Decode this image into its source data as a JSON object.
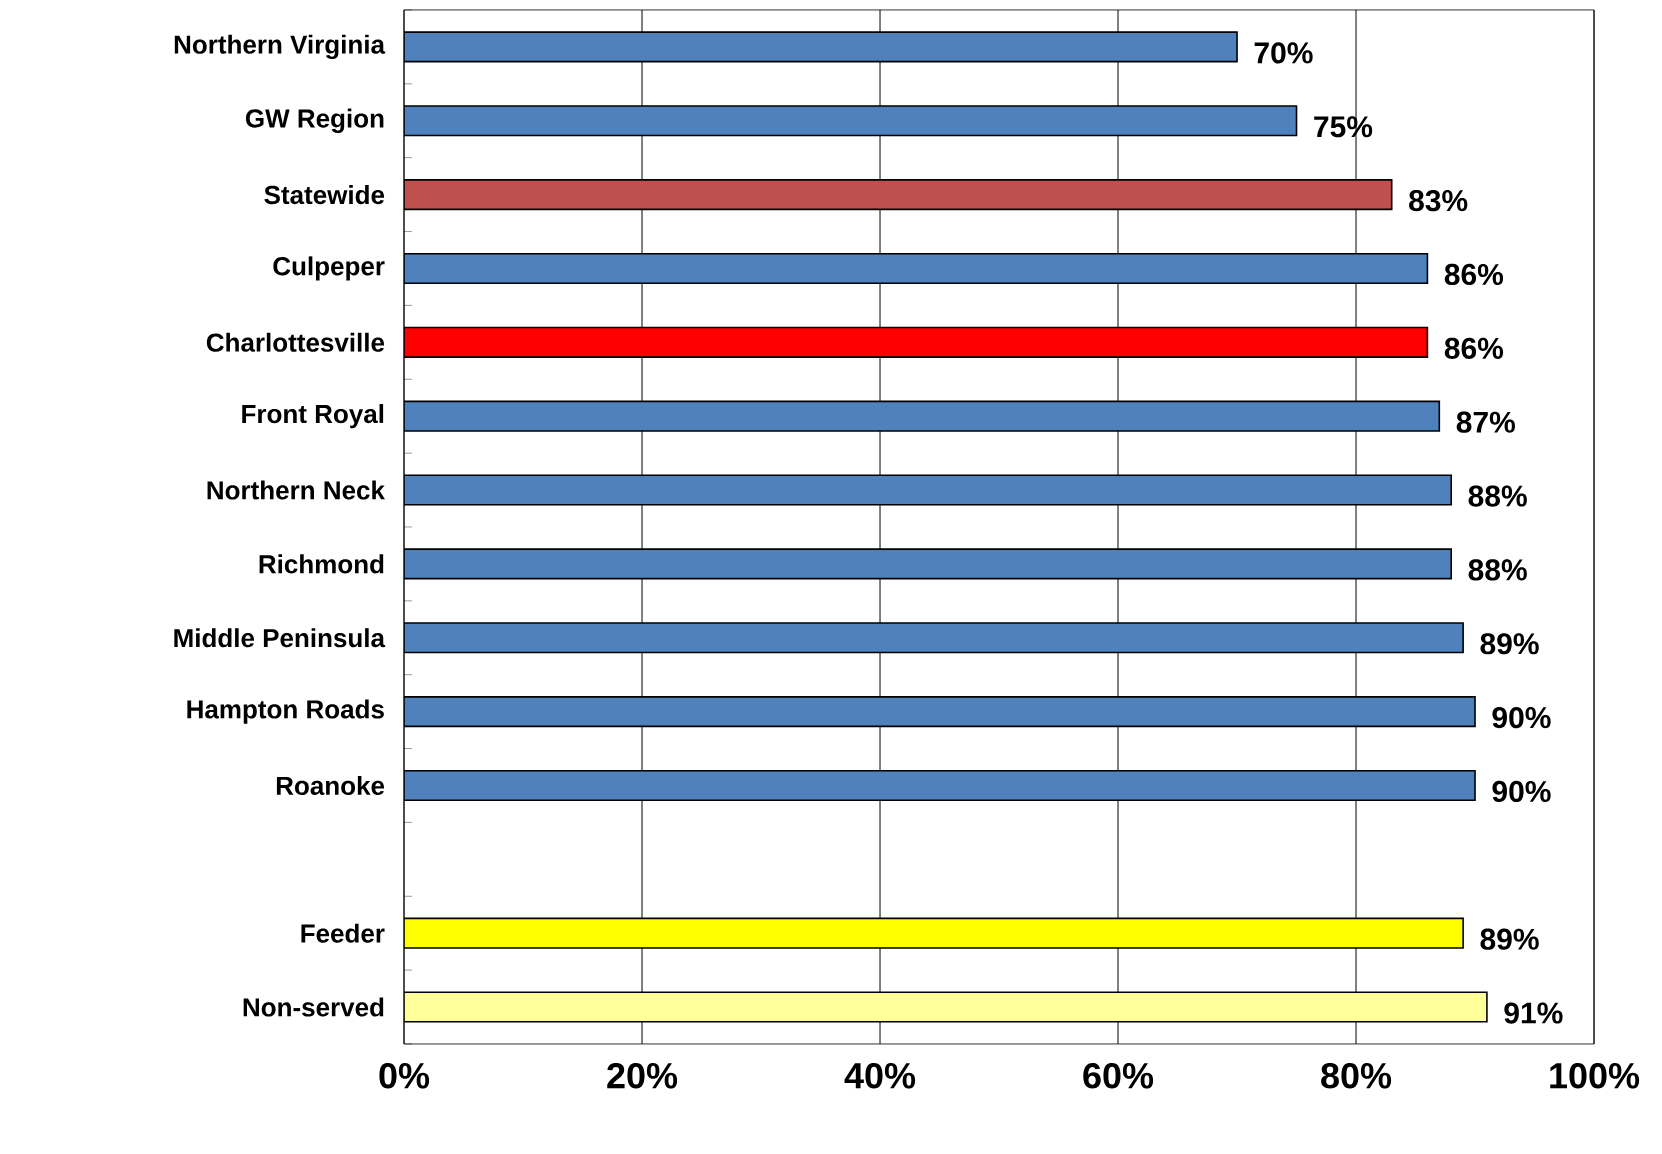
{
  "chart_data": {
    "type": "bar",
    "orientation": "horizontal",
    "categories": [
      "Northern Virginia",
      "GW Region",
      "Statewide",
      "Culpeper",
      "Charlottesville",
      "Front Royal",
      "Northern Neck",
      "Richmond",
      "Middle Peninsula",
      "Hampton Roads",
      "Roanoke",
      null,
      "Feeder",
      "Non-served"
    ],
    "values": [
      70,
      75,
      83,
      86,
      86,
      87,
      88,
      88,
      89,
      90,
      90,
      null,
      89,
      91
    ],
    "colors": [
      "#4f81bd",
      "#4f81bd",
      "#c0504d",
      "#4f81bd",
      "#ff0000",
      "#4f81bd",
      "#4f81bd",
      "#4f81bd",
      "#4f81bd",
      "#4f81bd",
      "#4f81bd",
      "#4f81bd",
      "#ffff00",
      "#ffff99"
    ],
    "value_labels": [
      "70%",
      "75%",
      "83%",
      "86%",
      "86%",
      "87%",
      "88%",
      "88%",
      "89%",
      "90%",
      "90%",
      null,
      "89%",
      "91%"
    ],
    "xlim": [
      0,
      100
    ],
    "xticks": [
      {
        "value": 0,
        "label": "0%"
      },
      {
        "value": 20,
        "label": "20%"
      },
      {
        "value": 40,
        "label": "40%"
      },
      {
        "value": 60,
        "label": "60%"
      },
      {
        "value": 80,
        "label": "80%"
      },
      {
        "value": 100,
        "label": "100%"
      }
    ],
    "grid": "x"
  }
}
